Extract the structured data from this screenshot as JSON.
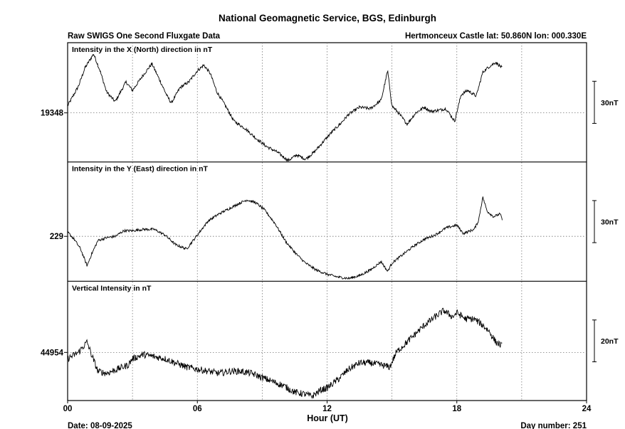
{
  "title": "National Geomagnetic Service, BGS, Edinburgh",
  "subtitle_left": "Raw SWIGS One Second Fluxgate Data",
  "subtitle_right": "Hertmonceux Castle  lat: 50.860N lon: 000.330E",
  "footer": {
    "date": "Date: 08-09-2025",
    "day_number": "Day number:  251"
  },
  "chart_data": {
    "type": "line",
    "title": "National Geomagnetic Service, BGS, Edinburgh",
    "xlabel": "Hour (UT)",
    "xlim": [
      0,
      24
    ],
    "x_ticks": [
      "00",
      "06",
      "12",
      "18",
      "24"
    ],
    "grid": true,
    "panels": [
      {
        "name": "Intensity in the X (North) direction in nT",
        "reference_label": "19348",
        "reference_value": 19348,
        "ylim": [
          19313,
          19398
        ],
        "scale_label": "30nT",
        "scale_nT": 30,
        "x": [
          0,
          0.5,
          0.8,
          1.2,
          1.5,
          1.8,
          2.2,
          2.7,
          3.0,
          3.5,
          3.9,
          4.3,
          4.6,
          4.8,
          5.2,
          5.6,
          6.0,
          6.3,
          6.6,
          6.9,
          7.3,
          7.7,
          8.2,
          8.7,
          9.2,
          9.7,
          10.2,
          10.6,
          11.0,
          11.4,
          11.8,
          12.2,
          12.6,
          13.0,
          13.5,
          14.0,
          14.5,
          14.8,
          15.0,
          15.3,
          15.7,
          16.1,
          16.5,
          16.8,
          17.2,
          17.5,
          17.9,
          18.2,
          18.5,
          18.9,
          19.2,
          19.5,
          19.8,
          20.1
        ],
        "values": [
          19353,
          19367,
          19380,
          19390,
          19378,
          19363,
          19356,
          19370,
          19364,
          19375,
          19383,
          19370,
          19360,
          19355,
          19366,
          19370,
          19378,
          19382,
          19376,
          19363,
          19353,
          19342,
          19337,
          19330,
          19324,
          19320,
          19314,
          19318,
          19315,
          19320,
          19327,
          19334,
          19340,
          19347,
          19352,
          19351,
          19357,
          19378,
          19353,
          19348,
          19340,
          19348,
          19352,
          19349,
          19350,
          19351,
          19342,
          19361,
          19364,
          19360,
          19377,
          19381,
          19384,
          19380
        ]
      },
      {
        "name": "Intensity in the Y (East) direction in nT",
        "reference_label": "229",
        "reference_value": 229,
        "ylim": [
          197,
          282
        ],
        "scale_label": "30nT",
        "scale_nT": 30,
        "x": [
          0,
          0.3,
          0.6,
          0.9,
          1.1,
          1.4,
          1.8,
          2.2,
          2.6,
          3.0,
          3.5,
          4.0,
          4.5,
          5.0,
          5.5,
          6.0,
          6.5,
          7.0,
          7.5,
          8.0,
          8.3,
          8.7,
          9.1,
          9.6,
          10.1,
          10.6,
          11.0,
          11.5,
          12.0,
          12.5,
          13.0,
          13.5,
          14.0,
          14.5,
          14.8,
          15.0,
          15.5,
          16.0,
          16.5,
          17.0,
          17.5,
          18.0,
          18.3,
          18.8,
          19.0,
          19.2,
          19.4,
          19.7,
          20.0,
          20.1
        ],
        "values": [
          232,
          227,
          220,
          208,
          216,
          226,
          228,
          229,
          233,
          233,
          234,
          234,
          230,
          223,
          220,
          230,
          240,
          245,
          249,
          253,
          255,
          253,
          248,
          238,
          225,
          216,
          210,
          205,
          202,
          200,
          199,
          201,
          205,
          211,
          204,
          210,
          216,
          222,
          227,
          230,
          235,
          237,
          231,
          234,
          240,
          257,
          247,
          243,
          245,
          241
        ]
      },
      {
        "name": "Vertical Intensity in nT",
        "reference_label": "44954",
        "reference_value": 44954,
        "ylim": [
          44931,
          44988
        ],
        "scale_label": "20nT",
        "scale_nT": 20,
        "x": [
          0,
          0.5,
          0.9,
          1.1,
          1.4,
          1.8,
          2.3,
          2.8,
          3.0,
          3.5,
          4.0,
          4.5,
          5.0,
          5.5,
          6.0,
          6.5,
          7.0,
          7.5,
          8.0,
          8.5,
          9.0,
          9.5,
          10.0,
          10.5,
          11.0,
          11.3,
          11.7,
          12.0,
          12.5,
          13.0,
          13.5,
          14.0,
          14.5,
          14.9,
          15.2,
          15.6,
          16.0,
          16.5,
          17.0,
          17.4,
          17.8,
          18.0,
          18.4,
          18.8,
          19.2,
          19.5,
          19.8,
          20.1
        ],
        "values": [
          44951,
          44954,
          44959,
          44953,
          44945,
          44944,
          44946,
          44948,
          44951,
          44953,
          44952,
          44951,
          44949,
          44947,
          44946,
          44945,
          44944,
          44945,
          44945,
          44944,
          44942,
          44940,
          44938,
          44935,
          44934,
          44933,
          44936,
          44937,
          44941,
          44946,
          44949,
          44949,
          44948,
          44947,
          44954,
          44958,
          44962,
          44967,
          44971,
          44974,
          44971,
          44973,
          44970,
          44970,
          44967,
          44964,
          44959,
          44957
        ]
      }
    ]
  }
}
